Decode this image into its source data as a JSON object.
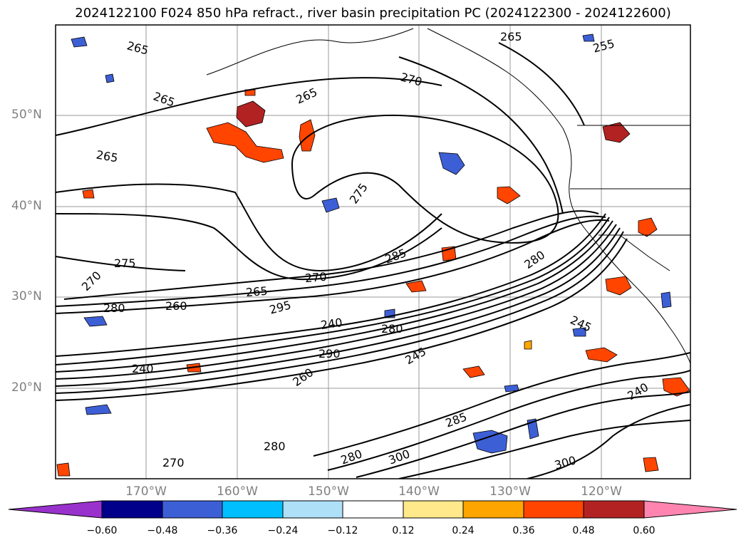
{
  "title": "2024122100 F024 850 hPa refract., river basin precipitation PC (2024122300 - 2024122600)",
  "map": {
    "projection": "Plate Carree",
    "lat_labels": [
      "50°N",
      "40°N",
      "30°N",
      "20°N"
    ],
    "lon_labels": [
      "170°W",
      "160°W",
      "150°W",
      "140°W",
      "130°W",
      "120°W"
    ],
    "contour_labels": [
      "265",
      "265",
      "265",
      "265",
      "270",
      "275",
      "270",
      "275",
      "280",
      "285",
      "270",
      "265",
      "295",
      "280",
      "240",
      "290",
      "245",
      "240",
      "260",
      "280",
      "285",
      "300",
      "245",
      "240",
      "300",
      "280",
      "260",
      "270",
      "280",
      "255",
      "265"
    ],
    "colors": {
      "contour": "#000000",
      "graticule": "#999999",
      "coast": "#000000"
    }
  },
  "colorbar": {
    "tick_labels": [
      "−0.60",
      "−0.48",
      "−0.36",
      "−0.24",
      "−0.12",
      "0.12",
      "0.24",
      "0.36",
      "0.48",
      "0.60"
    ],
    "colors": [
      "#9932cc",
      "#00008b",
      "#3d5fd6",
      "#00bfff",
      "#aee0f8",
      "#ffffff",
      "#ffe98a",
      "#ffa500",
      "#ff4500",
      "#b22222",
      "#ff85b0",
      "#ff85b0"
    ]
  }
}
